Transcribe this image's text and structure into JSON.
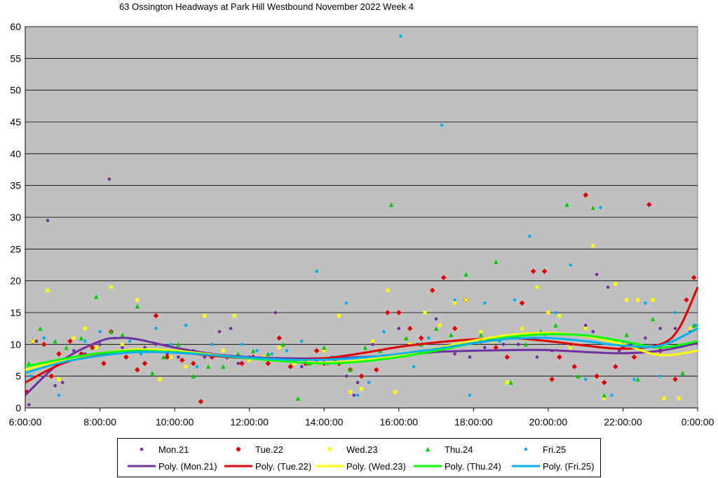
{
  "chart_data": {
    "type": "scatter",
    "title": "63 Ossington Headways at Park Hill Westbound November 2022  Week 4",
    "xlabel": "",
    "ylabel": "",
    "xlim": [
      6,
      24
    ],
    "ylim": [
      0,
      60
    ],
    "x_ticks": [
      "6:00:00",
      "8:00:00",
      "10:00:00",
      "12:00:00",
      "14:00:00",
      "16:00:00",
      "18:00:00",
      "20:00:00",
      "22:00:00",
      "0:00:00"
    ],
    "y_ticks": [
      "0",
      "5",
      "10",
      "15",
      "20",
      "25",
      "30",
      "35",
      "40",
      "45",
      "50",
      "55",
      "60"
    ],
    "grid": true,
    "background": "#c0c0c0",
    "legend_position": "bottom",
    "series": [
      {
        "name": "Mon.21",
        "marker": "circle",
        "color": "#7030a0",
        "x": [
          6.1,
          6.3,
          6.6,
          6.8,
          7.0,
          7.3,
          7.6,
          8.0,
          8.25,
          8.6,
          8.9,
          9.2,
          9.5,
          9.8,
          10.1,
          10.5,
          10.8,
          11.2,
          11.5,
          11.7,
          12.0,
          12.4,
          12.7,
          13.0,
          13.4,
          13.8,
          14.1,
          14.6,
          14.8,
          14.9,
          15.0,
          15.3,
          15.7,
          16.0,
          16.5,
          17.0,
          17.5,
          17.9,
          18.3,
          18.8,
          19.2,
          19.7,
          20.1,
          20.6,
          21.0,
          21.2,
          21.3,
          21.6,
          21.9,
          22.2,
          22.6,
          23.0,
          23.4,
          23.8
        ],
        "y": [
          0.5,
          10.5,
          29.5,
          3.5,
          4,
          9,
          8.5,
          10,
          36,
          9.5,
          9,
          9.5,
          10,
          8.5,
          8,
          9,
          8,
          12,
          12.5,
          7,
          8,
          8,
          15,
          7.5,
          6.5,
          7.5,
          7,
          5,
          2,
          4,
          3,
          10,
          8,
          12.5,
          10,
          14,
          8.5,
          8,
          9.5,
          10,
          10,
          8,
          9,
          10,
          13,
          12,
          21,
          19,
          9,
          10,
          11,
          12.5,
          12.5,
          12
        ]
      },
      {
        "name": "Tue.22",
        "marker": "diamond",
        "color": "#e00000",
        "x": [
          6.05,
          6.2,
          6.5,
          6.7,
          6.9,
          7.2,
          7.5,
          7.8,
          8.1,
          8.3,
          8.7,
          9.0,
          9.2,
          9.5,
          9.8,
          10.2,
          10.5,
          10.7,
          11.0,
          11.4,
          11.8,
          12.1,
          12.5,
          12.8,
          13.1,
          13.5,
          13.8,
          14.0,
          14.4,
          14.7,
          15.0,
          15.4,
          15.7,
          16.0,
          16.3,
          16.6,
          16.9,
          17.2,
          17.5,
          17.8,
          18.2,
          18.6,
          18.9,
          19.3,
          19.6,
          19.9,
          20.1,
          20.3,
          20.7,
          21.0,
          21.3,
          21.5,
          21.8,
          22.0,
          22.3,
          22.7,
          23.0,
          23.4,
          23.7,
          23.9
        ],
        "y": [
          2.5,
          10.5,
          10,
          5,
          8.5,
          10.5,
          8.5,
          9.5,
          7,
          12,
          8,
          6,
          7,
          14.5,
          8,
          7.5,
          7,
          1,
          8,
          8,
          7,
          8,
          7,
          11,
          6.5,
          7,
          9,
          7,
          7,
          6,
          5,
          6,
          15,
          15,
          12.5,
          11,
          18.5,
          20.5,
          12.5,
          17,
          10.5,
          9.5,
          8,
          16.5,
          21.5,
          21.5,
          4.5,
          8,
          6.5,
          33.5,
          5,
          4,
          6.5,
          9.5,
          8,
          32,
          9,
          4.5,
          17,
          20.5
        ]
      },
      {
        "name": "Wed.23",
        "marker": "square",
        "color": "#ffff00",
        "x": [
          6.2,
          6.6,
          6.9,
          7.3,
          7.6,
          7.9,
          8.3,
          8.6,
          9.0,
          9.3,
          9.6,
          9.9,
          10.3,
          10.8,
          11.3,
          11.6,
          12.0,
          12.4,
          12.8,
          13.2,
          13.6,
          14.0,
          14.4,
          14.7,
          15.0,
          15.3,
          15.7,
          15.9,
          16.3,
          16.7,
          17.1,
          17.5,
          17.8,
          18.2,
          18.5,
          18.9,
          19.3,
          19.7,
          20.0,
          20.3,
          20.6,
          21.0,
          21.2,
          21.5,
          21.8,
          22.1,
          22.4,
          22.8,
          23.1,
          23.5,
          23.8
        ],
        "y": [
          10.5,
          18.5,
          4.5,
          11,
          12.5,
          9.5,
          19,
          10,
          17,
          9,
          4.5,
          8,
          6.5,
          14.5,
          9,
          14.5,
          7.5,
          8,
          9.5,
          7,
          7.5,
          9,
          14.5,
          2.5,
          3,
          10.5,
          18.5,
          2.5,
          10,
          15,
          13,
          16.5,
          17,
          12,
          10.5,
          4,
          12.5,
          19,
          15,
          14.5,
          9.5,
          12.5,
          25.5,
          1.5,
          19.5,
          17,
          17,
          17,
          1.5,
          1.5,
          12.5
        ]
      },
      {
        "name": "Thu.24",
        "marker": "triangle",
        "color": "#00cc00",
        "x": [
          6.1,
          6.4,
          6.8,
          7.1,
          7.5,
          7.9,
          8.3,
          8.6,
          9.0,
          9.4,
          9.7,
          10.1,
          10.5,
          10.9,
          11.3,
          11.7,
          12.1,
          12.5,
          12.9,
          13.3,
          13.6,
          14.0,
          14.3,
          14.7,
          15.1,
          15.5,
          15.8,
          16.2,
          16.6,
          17.0,
          17.4,
          17.8,
          18.2,
          18.6,
          19.0,
          19.4,
          19.8,
          20.2,
          20.5,
          20.8,
          21.2,
          21.5,
          21.8,
          22.1,
          22.4,
          22.8,
          23.2,
          23.6,
          23.9
        ],
        "y": [
          7,
          12.5,
          10.5,
          9.5,
          11,
          17.5,
          12,
          11.5,
          16,
          5.5,
          8,
          10,
          5,
          6.5,
          6.5,
          8.5,
          9,
          8.5,
          10,
          1.5,
          7,
          9.5,
          7.5,
          6,
          9.5,
          9,
          32,
          11,
          10,
          12.5,
          11.5,
          21,
          11.5,
          23,
          4,
          10,
          12,
          13,
          32,
          5,
          31.5,
          2,
          10.5,
          11.5,
          4.5,
          14,
          10.5,
          5.5,
          13
        ]
      },
      {
        "name": "Fri.25",
        "marker": "circle",
        "color": "#00b0f0",
        "x": [
          6.15,
          6.5,
          6.9,
          7.2,
          7.6,
          8.0,
          8.4,
          8.8,
          9.1,
          9.5,
          9.9,
          10.3,
          10.6,
          11.0,
          11.4,
          11.8,
          12.2,
          12.6,
          13.0,
          13.4,
          13.8,
          14.2,
          14.6,
          14.9,
          15.2,
          15.6,
          16.05,
          16.4,
          16.8,
          17.15,
          17.5,
          17.9,
          18.3,
          18.7,
          19.1,
          19.5,
          19.9,
          20.2,
          20.6,
          21.0,
          21.4,
          21.7,
          22.0,
          22.3,
          22.6,
          23.0,
          23.4,
          23.7,
          23.95
        ],
        "y": [
          5,
          11,
          2,
          7.5,
          10.5,
          12,
          11,
          10.5,
          8.5,
          12.5,
          10,
          13,
          6.5,
          10,
          8,
          10,
          9,
          8.5,
          9,
          10.5,
          21.5,
          8,
          16.5,
          2,
          4,
          12,
          58.5,
          6.5,
          11,
          44.5,
          17,
          2,
          16.5,
          10.5,
          17,
          27,
          11.5,
          15,
          22.5,
          4.5,
          31.5,
          2,
          10,
          4.5,
          16.5,
          5,
          15,
          10,
          13
        ]
      }
    ],
    "trendlines": [
      {
        "name": "Poly. (Mon.21)",
        "color": "#7030a0",
        "x": [
          6,
          7,
          8,
          8.5,
          9,
          10,
          11,
          12,
          13,
          14,
          15,
          16,
          17,
          18,
          19,
          20,
          21,
          22,
          23,
          24
        ],
        "y": [
          2,
          7.5,
          10.5,
          11,
          10.8,
          9.5,
          8.5,
          8,
          7.8,
          7.8,
          8,
          8.3,
          8.8,
          9,
          9.1,
          9.1,
          8.8,
          8.6,
          9,
          10.2
        ]
      },
      {
        "name": "Poly. (Tue.22)",
        "color": "#e00000",
        "x": [
          6,
          7,
          8,
          9,
          10,
          11,
          12,
          13,
          14,
          15,
          16,
          17,
          18,
          19,
          20,
          21,
          22,
          23,
          23.5,
          24
        ],
        "y": [
          4,
          7,
          8.5,
          9,
          8.8,
          8.2,
          7.8,
          7.6,
          7.8,
          8.6,
          9.6,
          10.3,
          10.8,
          11,
          10.5,
          9.8,
          9.3,
          10,
          12.5,
          19
        ]
      },
      {
        "name": "Poly. (Wed.23)",
        "color": "#ffff00",
        "x": [
          6,
          7,
          8,
          9,
          10,
          11,
          12,
          13,
          14,
          15,
          16,
          17,
          18,
          19,
          20,
          21,
          22,
          23,
          24
        ],
        "y": [
          6,
          7.5,
          8.6,
          9.2,
          9,
          8.4,
          7.8,
          7.3,
          7.1,
          7.5,
          8.3,
          9.4,
          10.6,
          11.5,
          11.8,
          11.3,
          10,
          8.3,
          9
        ]
      },
      {
        "name": "Poly. (Thu.24)",
        "color": "#00ff00",
        "x": [
          6,
          7,
          8,
          9,
          10,
          11,
          12,
          13,
          14,
          15,
          16,
          17,
          18,
          19,
          20,
          21,
          22,
          23,
          24
        ],
        "y": [
          6.5,
          7.7,
          8.6,
          9,
          8.8,
          8.3,
          7.8,
          7.3,
          7,
          7.3,
          8,
          9,
          10.2,
          11.2,
          11.6,
          11.4,
          10.5,
          9.5,
          10.5
        ]
      },
      {
        "name": "Poly. (Fri.25)",
        "color": "#00b0f0",
        "x": [
          6,
          7,
          8,
          9,
          10,
          11,
          12,
          13,
          14,
          15,
          16,
          17,
          18,
          19,
          20,
          21,
          22,
          23,
          24
        ],
        "y": [
          5.5,
          7.2,
          8.2,
          8.8,
          8.7,
          8.3,
          7.9,
          7.6,
          7.6,
          7.9,
          8.5,
          9.3,
          10.2,
          10.9,
          11,
          10.5,
          9.8,
          9.8,
          12.5
        ]
      }
    ]
  }
}
